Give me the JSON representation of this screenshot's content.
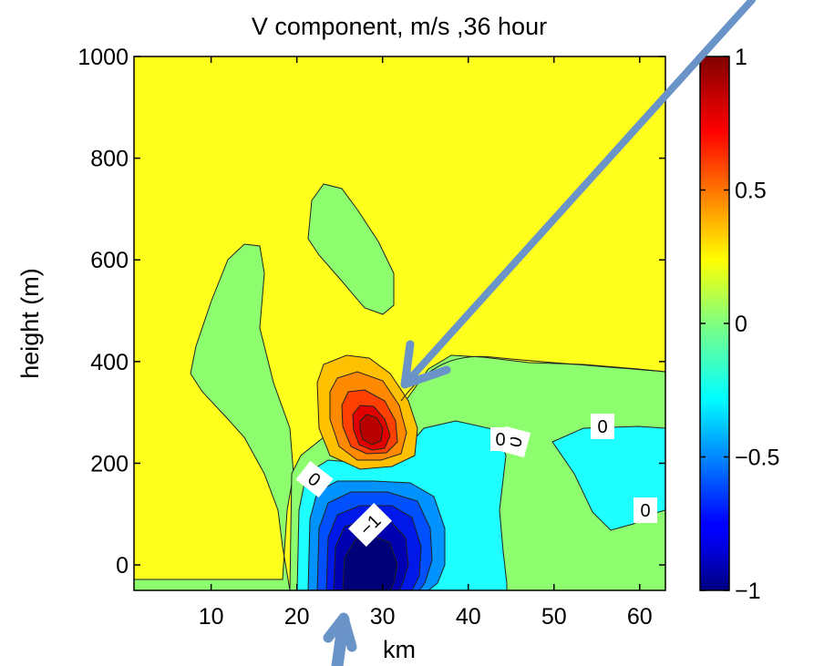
{
  "chart_data": {
    "type": "contour",
    "title": "V component, m/s ,36 hour",
    "xlabel": "km",
    "ylabel": "height (m)",
    "xlim": [
      1,
      63
    ],
    "ylim": [
      -50,
      1000
    ],
    "x_ticks": [
      10,
      20,
      30,
      40,
      50,
      60
    ],
    "y_ticks": [
      0,
      200,
      400,
      600,
      800,
      1000
    ],
    "colorbar": {
      "range": [
        -1,
        1
      ],
      "ticks": [
        -1,
        -0.5,
        0,
        0.5,
        1
      ],
      "tick_labels": [
        "−1",
        "−0.5",
        "0",
        "0.5",
        "1"
      ],
      "colormap": "jet"
    },
    "fill_colors": {
      "background_level": "#ffff1e",
      "zero_level": "#8dff6e",
      "neg_small": "#1effff",
      "pos_1": "#ffc000",
      "pos_2": "#ff8a00",
      "pos_3": "#ff4000",
      "pos_4": "#e00000",
      "pos_5": "#b80000",
      "neg_1": "#0092ff",
      "neg_2": "#0050ff",
      "neg_3": "#0018e8",
      "neg_4": "#0000b0",
      "neg_5": "#000078"
    },
    "contour_labels": [
      {
        "text": "0",
        "x": 52.8,
        "y": 245,
        "angle": -75
      },
      {
        "text": "0",
        "x": 44.7,
        "y": 238,
        "angle": 180
      },
      {
        "text": "0",
        "x": 56.5,
        "y": 270,
        "angle": 0
      },
      {
        "text": "0",
        "x": 59.7,
        "y": 100,
        "angle": 0
      },
      {
        "text": "0",
        "x": 22.4,
        "y": 182,
        "angle": 38
      },
      {
        "text": "−1",
        "x": 28.5,
        "y": 70,
        "angle": -45
      }
    ],
    "annotations": [
      {
        "type": "arrow",
        "meaning": "points to positive maximum",
        "target": [
          32,
          360
        ]
      },
      {
        "type": "arrow",
        "meaning": "points up from below axis",
        "target": [
          29,
          -50
        ]
      }
    ]
  }
}
